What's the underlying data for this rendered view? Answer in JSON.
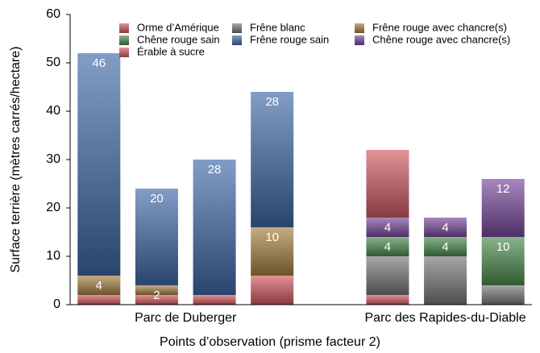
{
  "chart_data": {
    "type": "stacked_bar",
    "ylabel": "Surface terrière (mètres carrés/hectare)",
    "xlabel": "Points d’observation (prisme facteur 2)",
    "categories": [
      null,
      null,
      null,
      null,
      null,
      null,
      null
    ],
    "groups": [
      {
        "label": "Parc de Duberger",
        "size": 4
      },
      {
        "label": "Parc des Rapides-du-Diable",
        "size": 3
      }
    ],
    "series": [
      {
        "name": "Orme d’Amérique",
        "color": "#d2575e",
        "values": [
          2,
          2,
          2,
          6,
          2,
          0,
          0
        ],
        "show_labels": false
      },
      {
        "name": "Frêne blanc",
        "color": "#77777b",
        "values": [
          0,
          0,
          0,
          0,
          8,
          10,
          4
        ],
        "show_labels": false
      },
      {
        "name": "Frêne rouge avec chancre(s)",
        "color": "#a8803e",
        "values": [
          4,
          2,
          0,
          10,
          0,
          0,
          0
        ],
        "show_labels": true
      },
      {
        "name": "Chêne rouge sain",
        "color": "#4a8a4c",
        "values": [
          0,
          0,
          0,
          0,
          4,
          4,
          10
        ],
        "show_labels": true
      },
      {
        "name": "Frêne rouge sain",
        "color": "#3f68a8",
        "values": [
          46,
          20,
          28,
          28,
          0,
          0,
          0
        ],
        "show_labels": true
      },
      {
        "name": "Chêne rouge avec chancre(s)",
        "color": "#76479c",
        "values": [
          0,
          0,
          0,
          0,
          4,
          4,
          12
        ],
        "show_labels": true
      },
      {
        "name": "Érable à sucre",
        "color": "#cf5a62",
        "values": [
          0,
          0,
          0,
          0,
          14,
          0,
          0
        ],
        "show_labels": false
      }
    ],
    "ylim": [
      0,
      60
    ],
    "yticks": [
      0,
      10,
      20,
      30,
      40,
      50,
      60
    ],
    "grid": false,
    "legend": "top",
    "legend_columns": 3
  }
}
